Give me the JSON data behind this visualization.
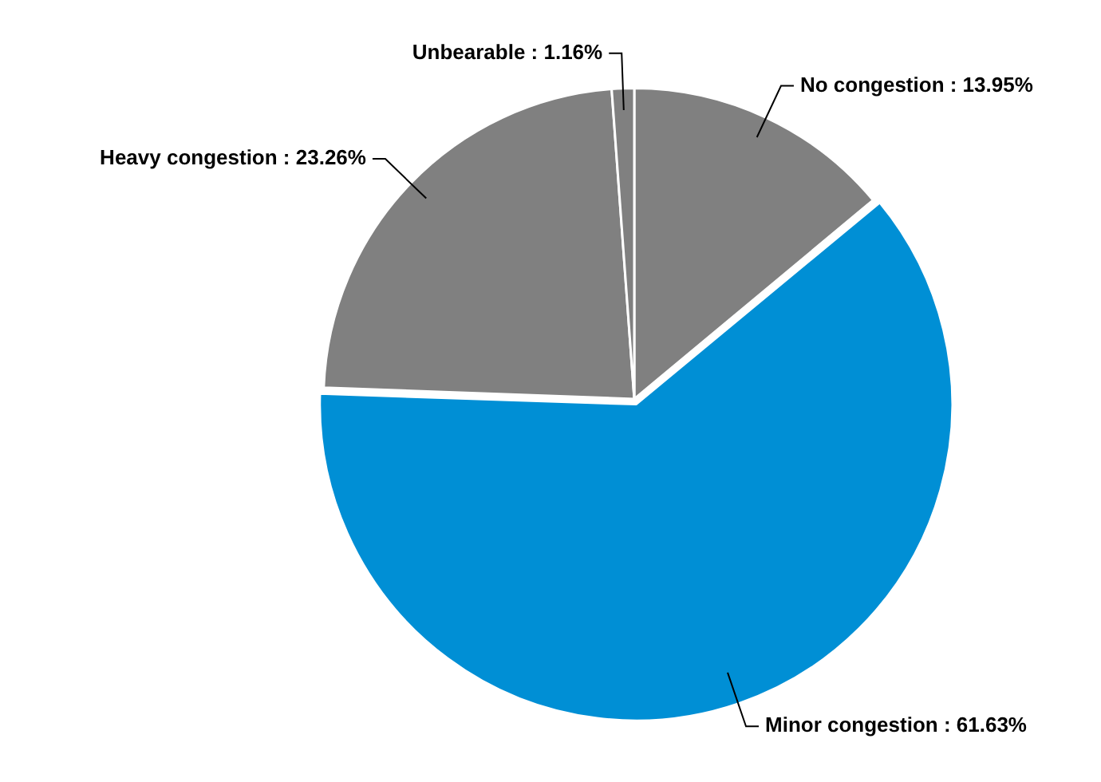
{
  "chart_data": {
    "type": "pie",
    "categories": [
      "No congestion",
      "Minor congestion",
      "Heavy congestion",
      "Unbearable"
    ],
    "values": [
      13.95,
      61.63,
      23.26,
      1.16
    ],
    "colors": [
      "#808080",
      "#008fd5",
      "#808080",
      "#808080"
    ],
    "value_labels": [
      "13.95%",
      "61.63%",
      "23.26%",
      "1.16%"
    ],
    "legend": false
  }
}
